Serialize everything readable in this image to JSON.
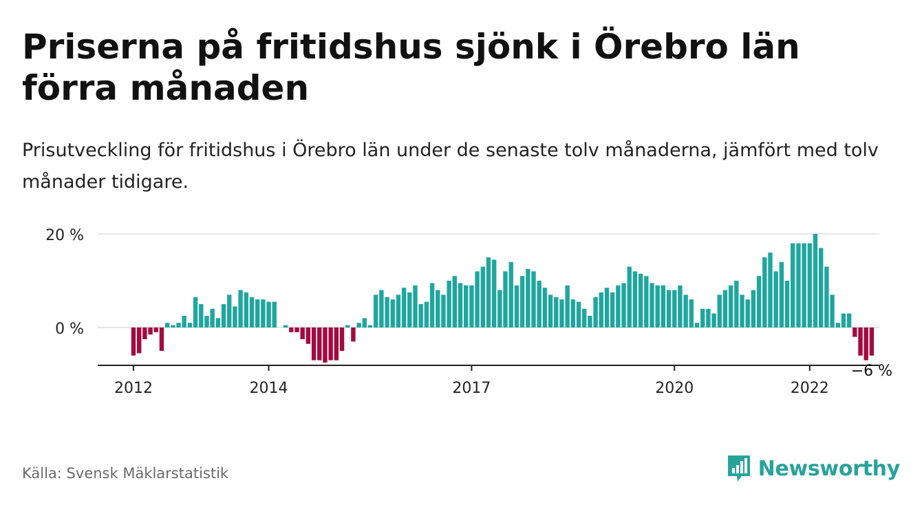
{
  "title": "Priserna på fritidshus sjönk i Örebro län förra månaden",
  "subtitle": "Prisutveckling för fritidshus i Örebro län under de senaste tolv månaderna, jämfört med tolv månader tidigare.",
  "source": "Källa: Svensk Mäklarstatistik",
  "brand": {
    "name": "Newsworthy",
    "icon": "newsworthy-logo-icon"
  },
  "colors": {
    "positive": "#1fa69e",
    "negative": "#a30a3f",
    "grid": "#dddddd",
    "axis": "#222222"
  },
  "chart_data": {
    "type": "bar",
    "unit": "%",
    "x_start": "2012-01",
    "x_ticks": [
      "2012",
      "2014",
      "2017",
      "2020",
      "2022"
    ],
    "y_ticks": [
      "0 %",
      "20 %"
    ],
    "ylim": [
      -8,
      20
    ],
    "grid": true,
    "last_label": "−6 %",
    "values": [
      -6,
      -5.5,
      -2.5,
      -1.5,
      -1,
      -5,
      1,
      0.5,
      1,
      2.5,
      1,
      6.5,
      5,
      2.5,
      4,
      2,
      5,
      7,
      4.5,
      8,
      7.5,
      6.5,
      6,
      6,
      5.5,
      5.5,
      0,
      0.5,
      -1,
      -1,
      -2.5,
      -3.5,
      -7,
      -7,
      -7.5,
      -7,
      -7,
      -5,
      0.5,
      -3,
      1,
      2,
      0.5,
      7,
      8,
      6.5,
      6,
      7,
      8.5,
      7.5,
      9,
      5,
      5.5,
      9.5,
      8,
      7,
      10,
      11,
      9.5,
      9,
      9,
      12,
      13,
      15,
      14.5,
      8,
      12,
      14,
      9,
      11,
      12.5,
      12,
      10,
      8.5,
      7,
      6.5,
      6,
      9,
      6,
      5.5,
      4,
      2.5,
      6.5,
      7.5,
      8.5,
      7.5,
      9,
      9.5,
      13,
      12,
      11.5,
      11,
      9.5,
      9,
      9,
      8,
      8,
      9,
      7,
      6,
      1,
      4,
      4,
      3,
      7,
      8,
      9,
      10,
      7,
      6,
      8,
      11,
      15,
      16,
      12,
      14,
      10,
      18,
      18,
      18,
      18,
      20,
      17,
      13,
      7,
      1,
      3,
      3,
      -2,
      -6,
      -7,
      -6
    ]
  }
}
